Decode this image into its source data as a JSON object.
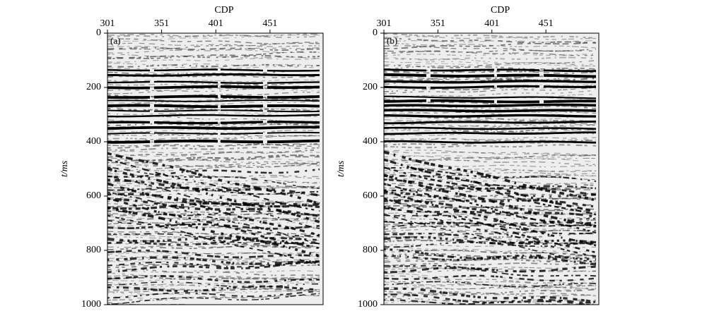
{
  "chart_data": [
    {
      "type": "seismic",
      "panel_label": "(a)",
      "x_label": "CDP",
      "y_label": "t/ms",
      "xlim": [
        301,
        500
      ],
      "xticks": [
        301,
        351,
        401,
        451
      ],
      "ylim": [
        1000,
        0
      ],
      "yticks": [
        0,
        200,
        400,
        600,
        800,
        1000
      ]
    },
    {
      "type": "seismic",
      "panel_label": "(b)",
      "x_label": "CDP",
      "y_label": "t/ms",
      "xlim": [
        301,
        500
      ],
      "xticks": [
        301,
        351,
        401,
        451
      ],
      "ylim": [
        1000,
        0
      ],
      "yticks": [
        0,
        200,
        400,
        600,
        800,
        1000
      ]
    }
  ]
}
